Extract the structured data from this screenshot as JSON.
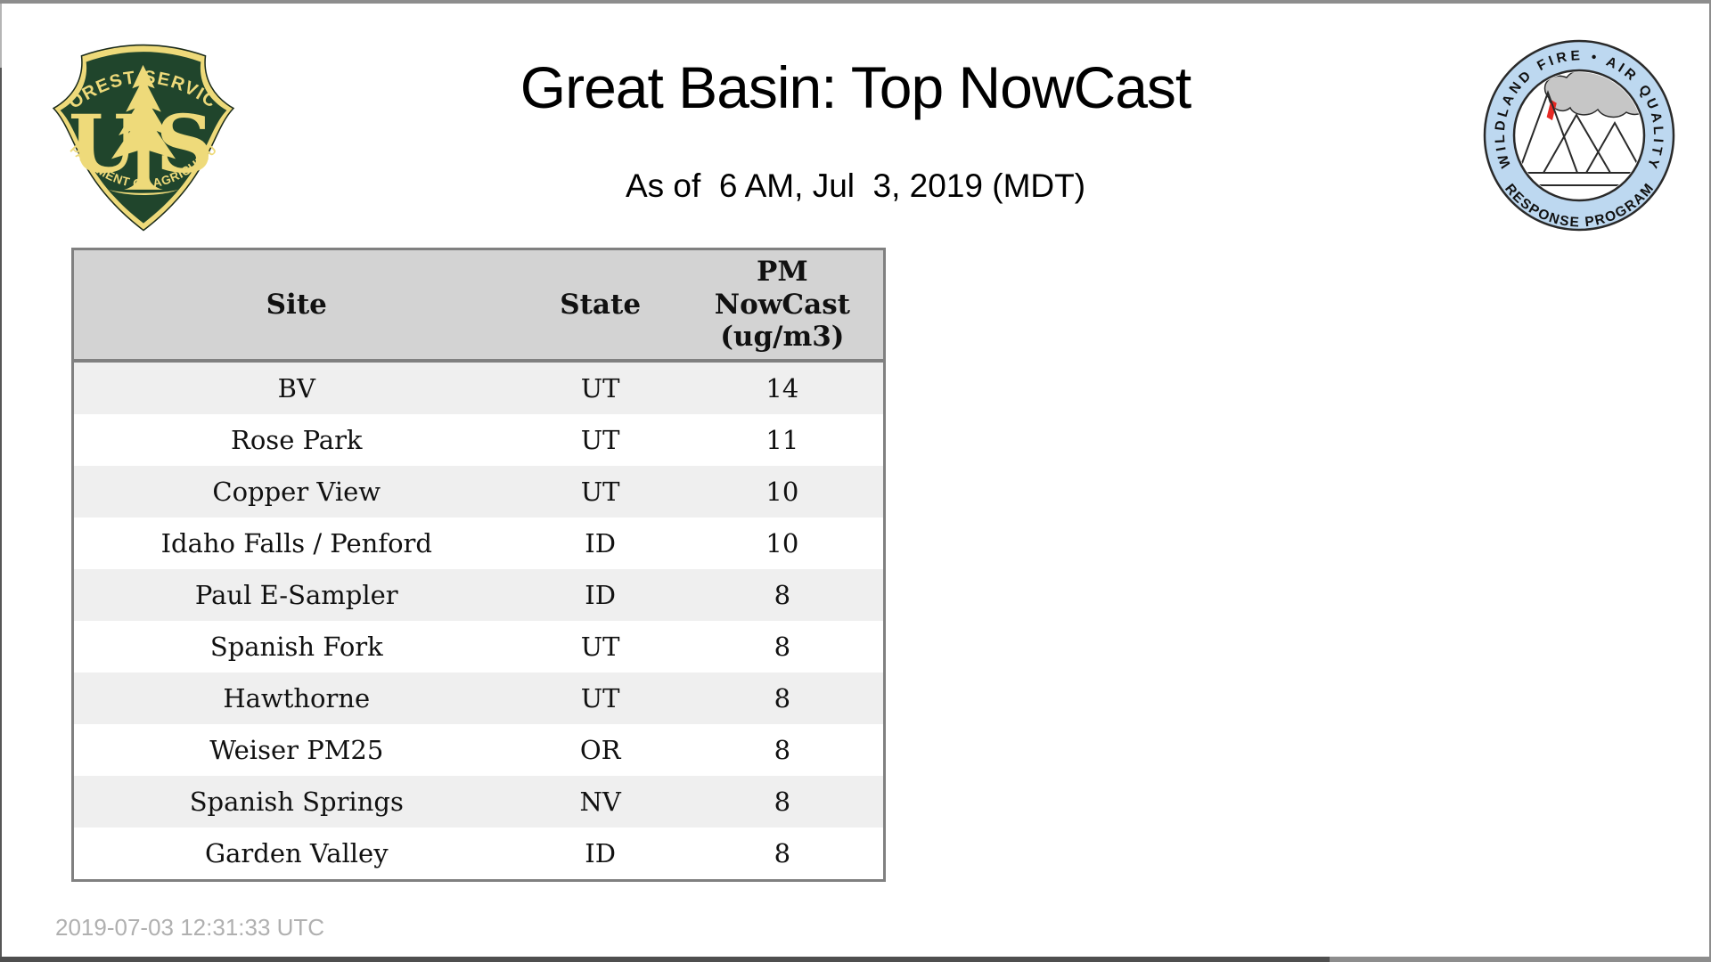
{
  "header": {
    "title": "Great Basin: Top NowCast",
    "subtitle": "As of  6 AM, Jul  3, 2019 (MDT)"
  },
  "logos": {
    "usfs": {
      "arc_top": "FOREST SERVICE",
      "arc_bottom": "DEPARTMENT OF AGRICULTURE",
      "letter_left": "U",
      "letter_right": "S",
      "green": "#20452c",
      "gold": "#eeda7a"
    },
    "wfaqrp": {
      "arc_top": "WILDLAND FIRE • AIR QUALITY",
      "arc_bottom": "RESPONSE PROGRAM",
      "ring_color": "#bdd8f0",
      "smoke_color": "#c6c6c6",
      "flame_color": "#e62a25"
    }
  },
  "table": {
    "columns": [
      "Site",
      "State",
      "PM NowCast (ug/m3)"
    ],
    "rows": [
      [
        "BV",
        "UT",
        "14"
      ],
      [
        "Rose Park",
        "UT",
        "11"
      ],
      [
        "Copper View",
        "UT",
        "10"
      ],
      [
        "Idaho Falls / Penford",
        "ID",
        "10"
      ],
      [
        "Paul E-Sampler",
        "ID",
        "8"
      ],
      [
        "Spanish Fork",
        "UT",
        "8"
      ],
      [
        "Hawthorne",
        "UT",
        "8"
      ],
      [
        "Weiser PM25",
        "OR",
        "8"
      ],
      [
        "Spanish Springs",
        "NV",
        "8"
      ],
      [
        "Garden Valley",
        "ID",
        "8"
      ]
    ]
  },
  "footer": {
    "timestamp": "2019-07-03 12:31:33 UTC"
  },
  "colors": {
    "table_header_bg": "#d3d3d3",
    "row_stripe": "#efefef",
    "table_border": "#808080",
    "footer_text": "#b0b0b0"
  }
}
